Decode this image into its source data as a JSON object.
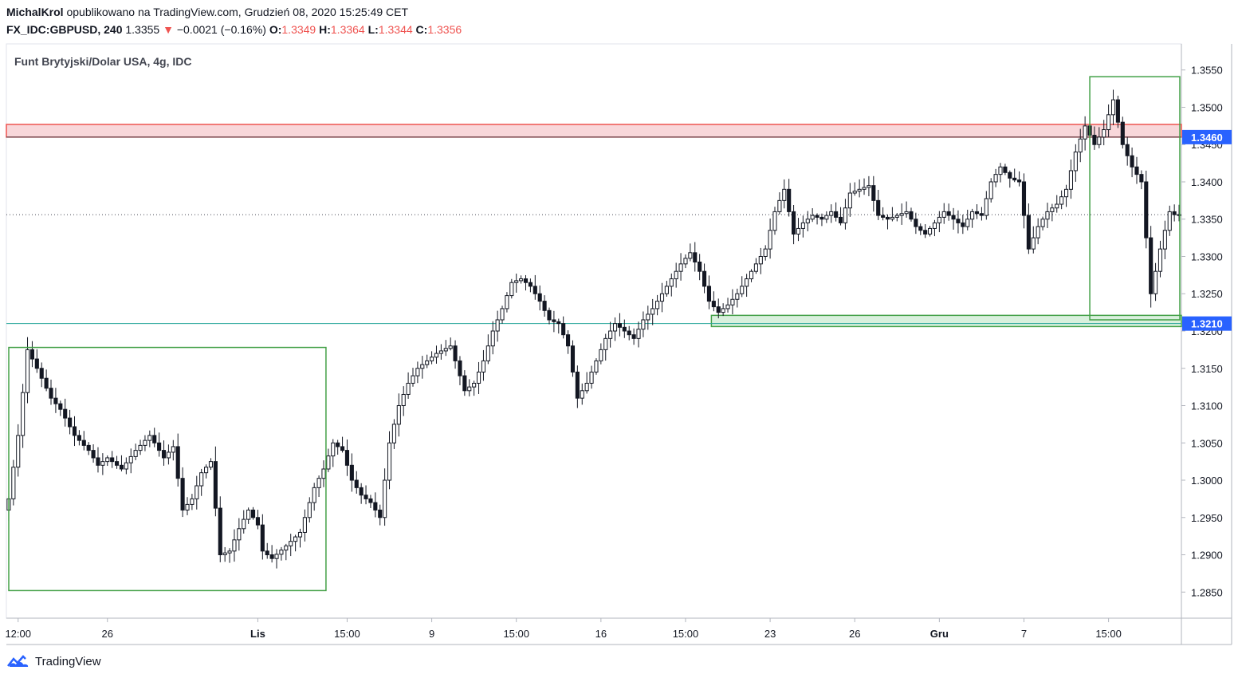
{
  "header": {
    "author": "MichalKrol",
    "published_text": "opublikowano na TradingView.com, Grudzień 08, 2020 15:25:49 CET",
    "symbol": "FX_IDC:GBPUSD, 240",
    "last": "1.3355",
    "change_arrow": "▼",
    "change": "−0.0021 (−0.16%)",
    "o_label": "O:",
    "o_value": "1.3349",
    "h_label": "H:",
    "h_value": "1.3364",
    "l_label": "L:",
    "l_value": "1.3344",
    "c_label": "C:",
    "c_value": "1.3356"
  },
  "brand": {
    "name": "TradingView",
    "logo_icon": "tradingview-logo-icon"
  },
  "chart_data": {
    "type": "candlestick",
    "title": "Funt Brytyjski/Dolar USA, 4g, IDC",
    "xlabel": "",
    "ylabel": "",
    "ylim": [
      1.2815,
      1.3585
    ],
    "y_ticks": [
      "1.3550",
      "1.3500",
      "1.3450",
      "1.3400",
      "1.3350",
      "1.3300",
      "1.3250",
      "1.3200",
      "1.3150",
      "1.3100",
      "1.3050",
      "1.3000",
      "1.2950",
      "1.2900",
      "1.2850"
    ],
    "x_ticks": [
      {
        "label": "12:00",
        "bar": 2
      },
      {
        "label": "26",
        "bar": 21
      },
      {
        "label": "Lis",
        "bar": 53
      },
      {
        "label": "15:00",
        "bar": 72
      },
      {
        "label": "9",
        "bar": 90
      },
      {
        "label": "15:00",
        "bar": 108
      },
      {
        "label": "16",
        "bar": 126
      },
      {
        "label": "15:00",
        "bar": 144
      },
      {
        "label": "23",
        "bar": 162
      },
      {
        "label": "26",
        "bar": 180
      },
      {
        "label": "Gru",
        "bar": 198
      },
      {
        "label": "7",
        "bar": 216
      },
      {
        "label": "15:00",
        "bar": 234
      }
    ],
    "price_labels": [
      {
        "value": 1.346,
        "text": "1.3460",
        "color": "#2962ff"
      },
      {
        "value": 1.321,
        "text": "1.3210",
        "color": "#2962ff"
      }
    ],
    "horizontal_lines": [
      {
        "value": 1.346,
        "color": "#434651"
      },
      {
        "value": 1.321,
        "color": "#26a69a"
      },
      {
        "value": 1.3356,
        "color": "#434651",
        "style": "dotted"
      }
    ],
    "zones": [
      {
        "from_bar": 0,
        "to_bar": 250,
        "low": 1.346,
        "high": 1.3477,
        "color": "#ef5350",
        "fill": "#f8d7da"
      },
      {
        "from_bar": 150,
        "to_bar": 250,
        "low": 1.3206,
        "high": 1.3221,
        "color": "#43a047",
        "fill": "#d9f0dd"
      }
    ],
    "boxes": [
      {
        "from_bar": 0,
        "to_bar": 68,
        "low": 1.2852,
        "high": 1.3178,
        "color": "#43a047"
      },
      {
        "from_bar": 230,
        "to_bar": 250,
        "low": 1.3215,
        "high": 1.3541,
        "color": "#43a047"
      }
    ],
    "total_bars": 250,
    "key_points": [
      [
        0,
        1.296
      ],
      [
        1,
        1.2975
      ],
      [
        3,
        1.306
      ],
      [
        5,
        1.3175
      ],
      [
        7,
        1.315
      ],
      [
        10,
        1.311
      ],
      [
        12,
        1.3095
      ],
      [
        15,
        1.306
      ],
      [
        18,
        1.304
      ],
      [
        20,
        1.302
      ],
      [
        22,
        1.303
      ],
      [
        25,
        1.3015
      ],
      [
        28,
        1.304
      ],
      [
        31,
        1.306
      ],
      [
        34,
        1.303
      ],
      [
        36,
        1.3045
      ],
      [
        38,
        1.296
      ],
      [
        40,
        1.2975
      ],
      [
        42,
        1.301
      ],
      [
        44,
        1.3025
      ],
      [
        46,
        1.29
      ],
      [
        48,
        1.2905
      ],
      [
        50,
        1.2935
      ],
      [
        52,
        1.296
      ],
      [
        54,
        1.294
      ],
      [
        55,
        1.2905
      ],
      [
        57,
        1.2895
      ],
      [
        60,
        1.2912
      ],
      [
        63,
        1.293
      ],
      [
        66,
        1.299
      ],
      [
        68,
        1.3015
      ],
      [
        70,
        1.305
      ],
      [
        72,
        1.304
      ],
      [
        74,
        1.3
      ],
      [
        76,
        1.298
      ],
      [
        78,
        1.297
      ],
      [
        80,
        1.295
      ],
      [
        82,
        1.305
      ],
      [
        84,
        1.31
      ],
      [
        86,
        1.313
      ],
      [
        88,
        1.315
      ],
      [
        90,
        1.316
      ],
      [
        92,
        1.317
      ],
      [
        95,
        1.318
      ],
      [
        98,
        1.312
      ],
      [
        100,
        1.313
      ],
      [
        102,
        1.316
      ],
      [
        104,
        1.32
      ],
      [
        106,
        1.323
      ],
      [
        108,
        1.3265
      ],
      [
        110,
        1.327
      ],
      [
        112,
        1.326
      ],
      [
        114,
        1.324
      ],
      [
        116,
        1.3215
      ],
      [
        118,
        1.321
      ],
      [
        120,
        1.318
      ],
      [
        122,
        1.311
      ],
      [
        124,
        1.313
      ],
      [
        126,
        1.316
      ],
      [
        128,
        1.319
      ],
      [
        130,
        1.321
      ],
      [
        132,
        1.32
      ],
      [
        134,
        1.319
      ],
      [
        136,
        1.3215
      ],
      [
        138,
        1.323
      ],
      [
        140,
        1.325
      ],
      [
        142,
        1.327
      ],
      [
        144,
        1.329
      ],
      [
        146,
        1.3305
      ],
      [
        148,
        1.328
      ],
      [
        150,
        1.324
      ],
      [
        152,
        1.3225
      ],
      [
        154,
        1.3235
      ],
      [
        156,
        1.325
      ],
      [
        158,
        1.327
      ],
      [
        160,
        1.329
      ],
      [
        162,
        1.331
      ],
      [
        164,
        1.336
      ],
      [
        166,
        1.339
      ],
      [
        168,
        1.333
      ],
      [
        170,
        1.3345
      ],
      [
        172,
        1.3355
      ],
      [
        174,
        1.335
      ],
      [
        176,
        1.336
      ],
      [
        178,
        1.3345
      ],
      [
        180,
        1.3385
      ],
      [
        182,
        1.339
      ],
      [
        184,
        1.3395
      ],
      [
        186,
        1.3355
      ],
      [
        188,
        1.335
      ],
      [
        190,
        1.3355
      ],
      [
        192,
        1.336
      ],
      [
        194,
        1.334
      ],
      [
        196,
        1.333
      ],
      [
        198,
        1.3345
      ],
      [
        200,
        1.336
      ],
      [
        202,
        1.335
      ],
      [
        204,
        1.334
      ],
      [
        206,
        1.336
      ],
      [
        208,
        1.3355
      ],
      [
        210,
        1.34
      ],
      [
        212,
        1.342
      ],
      [
        214,
        1.3405
      ],
      [
        216,
        1.34
      ],
      [
        218,
        1.331
      ],
      [
        220,
        1.334
      ],
      [
        222,
        1.336
      ],
      [
        224,
        1.337
      ],
      [
        226,
        1.339
      ],
      [
        228,
        1.344
      ],
      [
        230,
        1.3475
      ],
      [
        232,
        1.345
      ],
      [
        234,
        1.347
      ],
      [
        236,
        1.351
      ],
      [
        238,
        1.345
      ],
      [
        240,
        1.342
      ],
      [
        242,
        1.34
      ],
      [
        244,
        1.325
      ],
      [
        246,
        1.331
      ],
      [
        248,
        1.336
      ],
      [
        249,
        1.3356
      ]
    ]
  }
}
